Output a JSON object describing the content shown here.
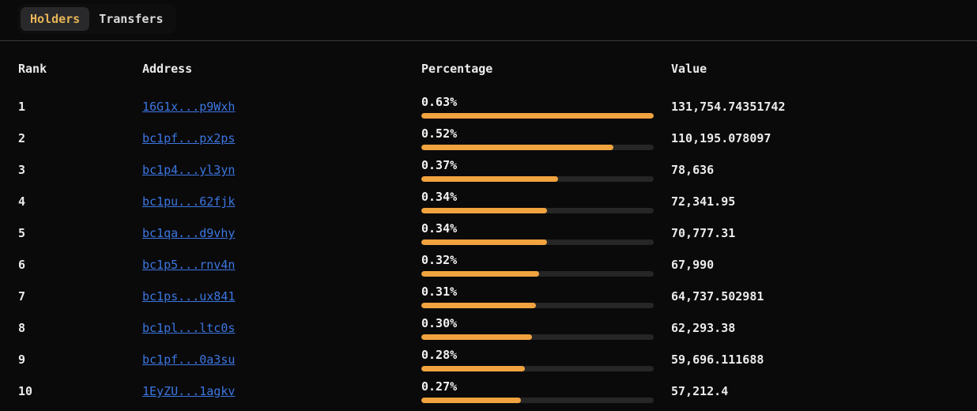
{
  "tabs": {
    "holders": {
      "label": "Holders",
      "active": true
    },
    "transfers": {
      "label": "Transfers",
      "active": false
    }
  },
  "table": {
    "columns": {
      "rank": "Rank",
      "address": "Address",
      "percentage": "Percentage",
      "value": "Value"
    },
    "max_percentage_value": 0.63,
    "rows": [
      {
        "rank": "1",
        "address": "16G1x...p9Wxh",
        "percentage": "0.63%",
        "pct": 0.63,
        "value": "131,754.74351742"
      },
      {
        "rank": "2",
        "address": "bc1pf...px2ps",
        "percentage": "0.52%",
        "pct": 0.52,
        "value": "110,195.078097"
      },
      {
        "rank": "3",
        "address": "bc1p4...yl3yn",
        "percentage": "0.37%",
        "pct": 0.37,
        "value": "78,636"
      },
      {
        "rank": "4",
        "address": "bc1pu...62fjk",
        "percentage": "0.34%",
        "pct": 0.34,
        "value": "72,341.95"
      },
      {
        "rank": "5",
        "address": "bc1qa...d9vhy",
        "percentage": "0.34%",
        "pct": 0.34,
        "value": "70,777.31"
      },
      {
        "rank": "6",
        "address": "bc1p5...rnv4n",
        "percentage": "0.32%",
        "pct": 0.32,
        "value": "67,990"
      },
      {
        "rank": "7",
        "address": "bc1ps...ux841",
        "percentage": "0.31%",
        "pct": 0.31,
        "value": "64,737.502981"
      },
      {
        "rank": "8",
        "address": "bc1pl...ltc0s",
        "percentage": "0.30%",
        "pct": 0.3,
        "value": "62,293.38"
      },
      {
        "rank": "9",
        "address": "bc1pf...0a3su",
        "percentage": "0.28%",
        "pct": 0.28,
        "value": "59,696.111688"
      },
      {
        "rank": "10",
        "address": "1EyZU...1agkv",
        "percentage": "0.27%",
        "pct": 0.27,
        "value": "57,212.4"
      }
    ]
  },
  "colors": {
    "background": "#0a0a0b",
    "accent_gold": "#e7b458",
    "bar_fill": "#f0a33f",
    "bar_track": "#262626",
    "link_blue": "#3c76e1"
  }
}
